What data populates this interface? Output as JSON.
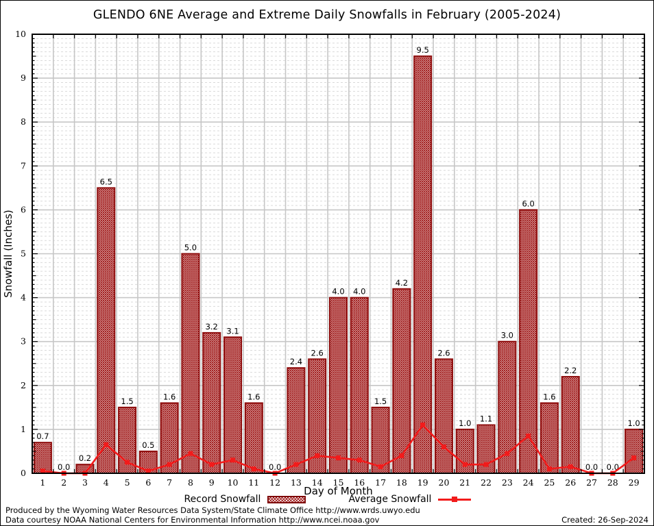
{
  "chart_data": {
    "type": "bar",
    "title": "GLENDO 6NE Average and Extreme Daily Snowfalls in February (2005-2024)",
    "categories": [
      1,
      2,
      3,
      4,
      5,
      6,
      7,
      8,
      9,
      10,
      11,
      12,
      13,
      14,
      15,
      16,
      17,
      18,
      19,
      20,
      21,
      22,
      23,
      24,
      25,
      26,
      27,
      28,
      29
    ],
    "series": [
      {
        "name": "Record Snowfall",
        "type": "bar",
        "style": "crosshatch",
        "values": [
          0.7,
          0.0,
          0.2,
          6.5,
          1.5,
          0.5,
          1.6,
          5.0,
          3.2,
          3.1,
          1.6,
          0.0,
          2.4,
          2.6,
          4.0,
          4.0,
          1.5,
          4.2,
          9.5,
          2.6,
          1.0,
          1.1,
          3.0,
          6.0,
          1.6,
          2.2,
          0.0,
          0.0,
          1.0
        ]
      },
      {
        "name": "Average Snowfall",
        "type": "line",
        "marker": "square",
        "values": [
          0.05,
          0.0,
          0.0,
          0.65,
          0.25,
          0.05,
          0.2,
          0.45,
          0.2,
          0.3,
          0.1,
          0.0,
          0.2,
          0.4,
          0.35,
          0.3,
          0.15,
          0.4,
          1.1,
          0.6,
          0.2,
          0.2,
          0.45,
          0.85,
          0.1,
          0.15,
          0.0,
          0.0,
          0.35
        ]
      }
    ],
    "bar_value_labels_shown": true,
    "xlabel": "Day of Month",
    "ylabel": "Snowfall (Inches)",
    "ylim": [
      0,
      10
    ],
    "yticks": [
      0,
      1,
      2,
      3,
      4,
      5,
      6,
      7,
      8,
      9,
      10
    ],
    "grid": {
      "horizontal_major": "solid",
      "horizontal_minor": "dashed",
      "minor_step": 0.1,
      "vertical": "solid at day boundaries"
    },
    "legend_position": "bottom-center",
    "colors": {
      "bar_border": "#8e0d0d",
      "bar_hatch": "#9e1414",
      "line": "#f21b1b",
      "grid_major": "#c6c6c6",
      "grid_minor": "#d9d9d9",
      "axis": "#000000",
      "background": "#ffffff"
    }
  },
  "footer": {
    "line1": "Produced by the Wyoming Water Resources Data System/State Climate Office http://www.wrds.uwyo.edu",
    "line2": "Data courtesy NOAA National Centers for Environmental Information http://www.ncei.noaa.gov",
    "created": "Created: 26-Sep-2024"
  }
}
